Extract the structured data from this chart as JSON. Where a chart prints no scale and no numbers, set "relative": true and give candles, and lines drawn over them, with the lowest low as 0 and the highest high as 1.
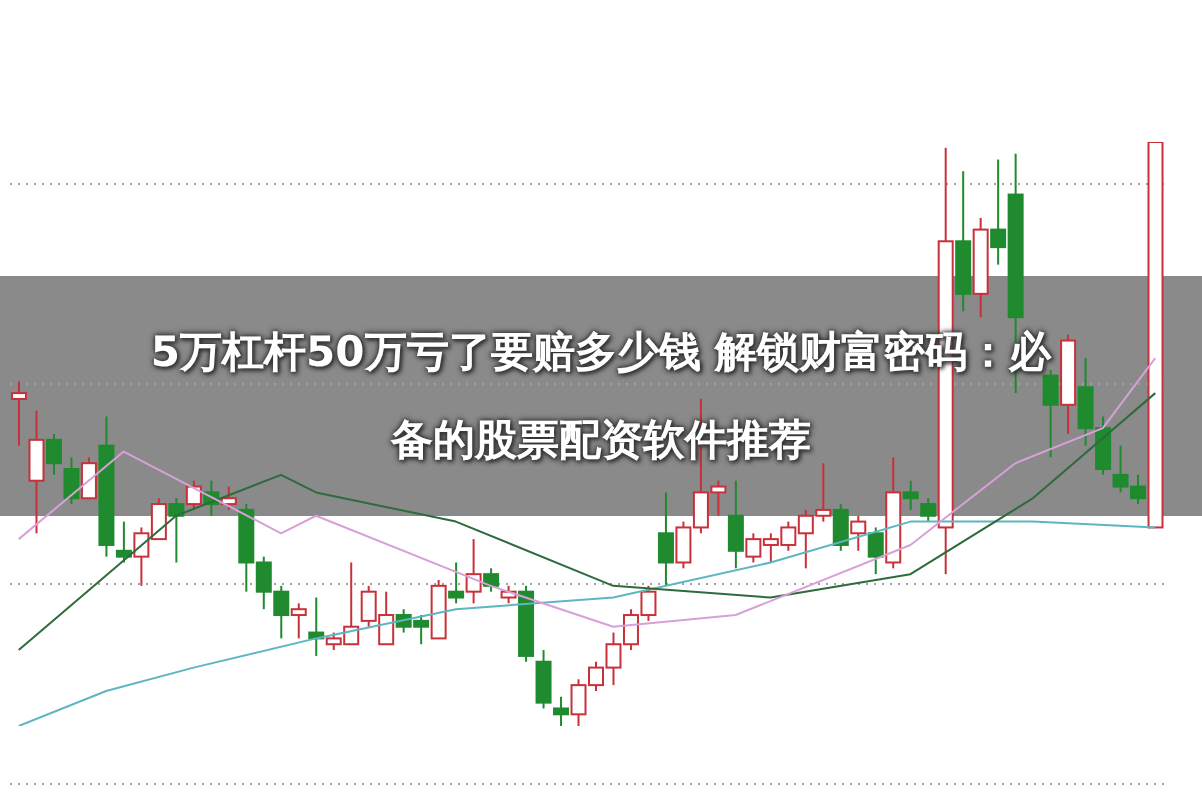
{
  "chart_data": {
    "type": "candlestick",
    "title": "5万杠杆50万亏了要赔多少钱 解锁财富密码：必备的股票配资软件推荐",
    "relative": true,
    "grid": "y",
    "categories": [
      null,
      null,
      null,
      null,
      null,
      null,
      null,
      null,
      null,
      null,
      null,
      null,
      null,
      null,
      null,
      null,
      null,
      null,
      null,
      null,
      null,
      null,
      null,
      null,
      null,
      null,
      null,
      null,
      null,
      null,
      null,
      null,
      null,
      null,
      null,
      null,
      null,
      null,
      null,
      null,
      null,
      null,
      null,
      null,
      null,
      null,
      null,
      null,
      null,
      null,
      null,
      null,
      null,
      null,
      null,
      null,
      null,
      null,
      null,
      null,
      null,
      null,
      null,
      null,
      null,
      null
    ],
    "ohlc": [
      [
        0.56,
        0.59,
        0.48,
        0.57
      ],
      [
        0.42,
        0.54,
        0.33,
        0.49
      ],
      [
        0.49,
        0.5,
        0.43,
        0.45
      ],
      [
        0.44,
        0.46,
        0.38,
        0.39
      ],
      [
        0.39,
        0.46,
        0.39,
        0.45
      ],
      [
        0.48,
        0.53,
        0.29,
        0.31
      ],
      [
        0.3,
        0.35,
        0.28,
        0.29
      ],
      [
        0.29,
        0.34,
        0.24,
        0.33
      ],
      [
        0.32,
        0.39,
        0.32,
        0.38
      ],
      [
        0.38,
        0.39,
        0.28,
        0.36
      ],
      [
        0.38,
        0.42,
        0.37,
        0.41
      ],
      [
        0.4,
        0.42,
        0.36,
        0.38
      ],
      [
        0.38,
        0.41,
        0.37,
        0.39
      ],
      [
        0.37,
        0.38,
        0.23,
        0.28
      ],
      [
        0.28,
        0.29,
        0.2,
        0.23
      ],
      [
        0.23,
        0.24,
        0.15,
        0.19
      ],
      [
        0.19,
        0.21,
        0.15,
        0.2
      ],
      [
        0.16,
        0.22,
        0.12,
        0.15
      ],
      [
        0.14,
        0.16,
        0.13,
        0.15
      ],
      [
        0.14,
        0.28,
        0.14,
        0.17
      ],
      [
        0.18,
        0.24,
        0.17,
        0.23
      ],
      [
        0.14,
        0.23,
        0.14,
        0.19
      ],
      [
        0.19,
        0.2,
        0.16,
        0.17
      ],
      [
        0.18,
        0.19,
        0.14,
        0.17
      ],
      [
        0.15,
        0.25,
        0.15,
        0.24
      ],
      [
        0.23,
        0.28,
        0.21,
        0.22
      ],
      [
        0.23,
        0.32,
        0.21,
        0.26
      ],
      [
        0.26,
        0.27,
        0.23,
        0.24
      ],
      [
        0.22,
        0.24,
        0.21,
        0.23
      ],
      [
        0.23,
        0.24,
        0.11,
        0.12
      ],
      [
        0.11,
        0.13,
        0.03,
        0.04
      ],
      [
        0.03,
        0.05,
        0,
        0.02
      ],
      [
        0.02,
        0.08,
        0,
        0.07
      ],
      [
        0.07,
        0.11,
        0.06,
        0.1
      ],
      [
        0.1,
        0.16,
        0.07,
        0.14
      ],
      [
        0.14,
        0.2,
        0.13,
        0.19
      ],
      [
        0.19,
        0.24,
        0.18,
        0.23
      ],
      [
        0.33,
        0.4,
        0.24,
        0.28
      ],
      [
        0.28,
        0.35,
        0.27,
        0.34
      ],
      [
        0.34,
        0.56,
        0.33,
        0.4
      ],
      [
        0.4,
        0.42,
        0.36,
        0.41
      ],
      [
        0.36,
        0.42,
        0.27,
        0.3
      ],
      [
        0.29,
        0.33,
        0.28,
        0.32
      ],
      [
        0.31,
        0.33,
        0.28,
        0.32
      ],
      [
        0.31,
        0.35,
        0.3,
        0.34
      ],
      [
        0.33,
        0.37,
        0.27,
        0.36
      ],
      [
        0.36,
        0.45,
        0.35,
        0.37
      ],
      [
        0.37,
        0.38,
        0.3,
        0.31
      ],
      [
        0.33,
        0.36,
        0.3,
        0.35
      ],
      [
        0.33,
        0.34,
        0.26,
        0.29
      ],
      [
        0.28,
        0.46,
        0.27,
        0.4
      ],
      [
        0.4,
        0.42,
        0.37,
        0.39
      ],
      [
        0.38,
        0.39,
        0.35,
        0.36
      ],
      [
        0.34,
        0.99,
        0.26,
        0.83
      ],
      [
        0.83,
        0.95,
        0.71,
        0.74
      ],
      [
        0.74,
        0.87,
        0.7,
        0.85
      ],
      [
        0.85,
        0.97,
        0.79,
        0.82
      ],
      [
        0.91,
        0.98,
        0.57,
        0.7
      ],
      null,
      [
        0.6,
        0.61,
        0.46,
        0.55
      ],
      [
        0.55,
        0.67,
        0.5,
        0.66
      ],
      [
        0.58,
        0.63,
        0.48,
        0.51
      ],
      [
        0.51,
        0.53,
        0.43,
        0.44
      ],
      [
        0.43,
        0.48,
        0.4,
        0.41
      ],
      [
        0.41,
        0.43,
        0.38,
        0.39
      ],
      [
        0.34,
        1,
        0.34,
        1
      ]
    ],
    "colors": [
      "#c8313a",
      "#c8313a",
      "#1f8a2e",
      "#1f8a2e",
      "#c8313a",
      "#1f8a2e",
      "#1f8a2e",
      "#c8313a",
      "#c8313a",
      "#1f8a2e",
      "#c8313a",
      "#1f8a2e",
      "#c8313a",
      "#1f8a2e",
      "#1f8a2e",
      "#1f8a2e",
      "#c8313a",
      "#1f8a2e",
      "#c8313a",
      "#c8313a",
      "#c8313a",
      "#c8313a",
      "#1f8a2e",
      "#1f8a2e",
      "#c8313a",
      "#1f8a2e",
      "#c8313a",
      "#1f8a2e",
      "#c8313a",
      "#1f8a2e",
      "#1f8a2e",
      "#1f8a2e",
      "#c8313a",
      "#c8313a",
      "#c8313a",
      "#c8313a",
      "#c8313a",
      "#1f8a2e",
      "#c8313a",
      "#c8313a",
      "#c8313a",
      "#1f8a2e",
      "#c8313a",
      "#c8313a",
      "#c8313a",
      "#c8313a",
      "#c8313a",
      "#1f8a2e",
      "#c8313a",
      "#1f8a2e",
      "#c8313a",
      "#1f8a2e",
      "#1f8a2e",
      "#c8313a",
      "#1f8a2e",
      "#c8313a",
      "#1f8a2e",
      "#1f8a2e",
      null,
      "#1f8a2e",
      "#c8313a",
      "#1f8a2e",
      "#1f8a2e",
      "#1f8a2e",
      "#1f8a2e",
      "#c8313a"
    ],
    "series": [
      {
        "type": "line",
        "color": "#5fb5c0",
        "values": [
          0,
          null,
          null,
          null,
          null,
          0.06,
          null,
          null,
          null,
          null,
          0.1,
          null,
          null,
          null,
          null,
          null,
          null,
          0.15,
          null,
          null,
          null,
          null,
          null,
          null,
          null,
          0.2,
          null,
          null,
          null,
          null,
          null,
          null,
          null,
          null,
          0.22,
          null,
          null,
          null,
          null,
          null,
          null,
          null,
          null,
          0.28,
          null,
          null,
          null,
          null,
          null,
          null,
          null,
          0.35,
          null,
          null,
          null,
          null,
          null,
          null,
          0.35,
          null,
          null,
          null,
          null,
          null,
          null,
          0.34
        ]
      },
      {
        "type": "line",
        "color": "#2e6b3c",
        "values": [
          0.13,
          null,
          null,
          null,
          null,
          null,
          null,
          null,
          null,
          0.36,
          null,
          null,
          null,
          null,
          null,
          0.43,
          null,
          0.4,
          null,
          null,
          null,
          null,
          null,
          null,
          null,
          0.35,
          null,
          null,
          null,
          null,
          null,
          null,
          null,
          null,
          0.24,
          null,
          null,
          null,
          null,
          null,
          null,
          null,
          null,
          0.22,
          null,
          null,
          null,
          null,
          null,
          null,
          null,
          0.26,
          null,
          null,
          null,
          null,
          null,
          null,
          0.39,
          null,
          null,
          null,
          null,
          null,
          null,
          0.57
        ]
      },
      {
        "type": "line",
        "color": "#d8a0d8",
        "values": [
          0.32,
          null,
          null,
          null,
          null,
          null,
          0.47,
          null,
          null,
          null,
          null,
          null,
          null,
          null,
          null,
          0.33,
          null,
          0.36,
          null,
          null,
          null,
          null,
          null,
          null,
          null,
          null,
          null,
          0.24,
          null,
          null,
          null,
          null,
          null,
          null,
          0.17,
          null,
          null,
          null,
          null,
          null,
          null,
          0.19,
          null,
          null,
          null,
          null,
          null,
          null,
          null,
          null,
          null,
          0.31,
          null,
          null,
          null,
          null,
          null,
          0.45,
          null,
          null,
          null,
          null,
          0.51,
          null,
          null,
          0.63
        ]
      }
    ]
  }
}
